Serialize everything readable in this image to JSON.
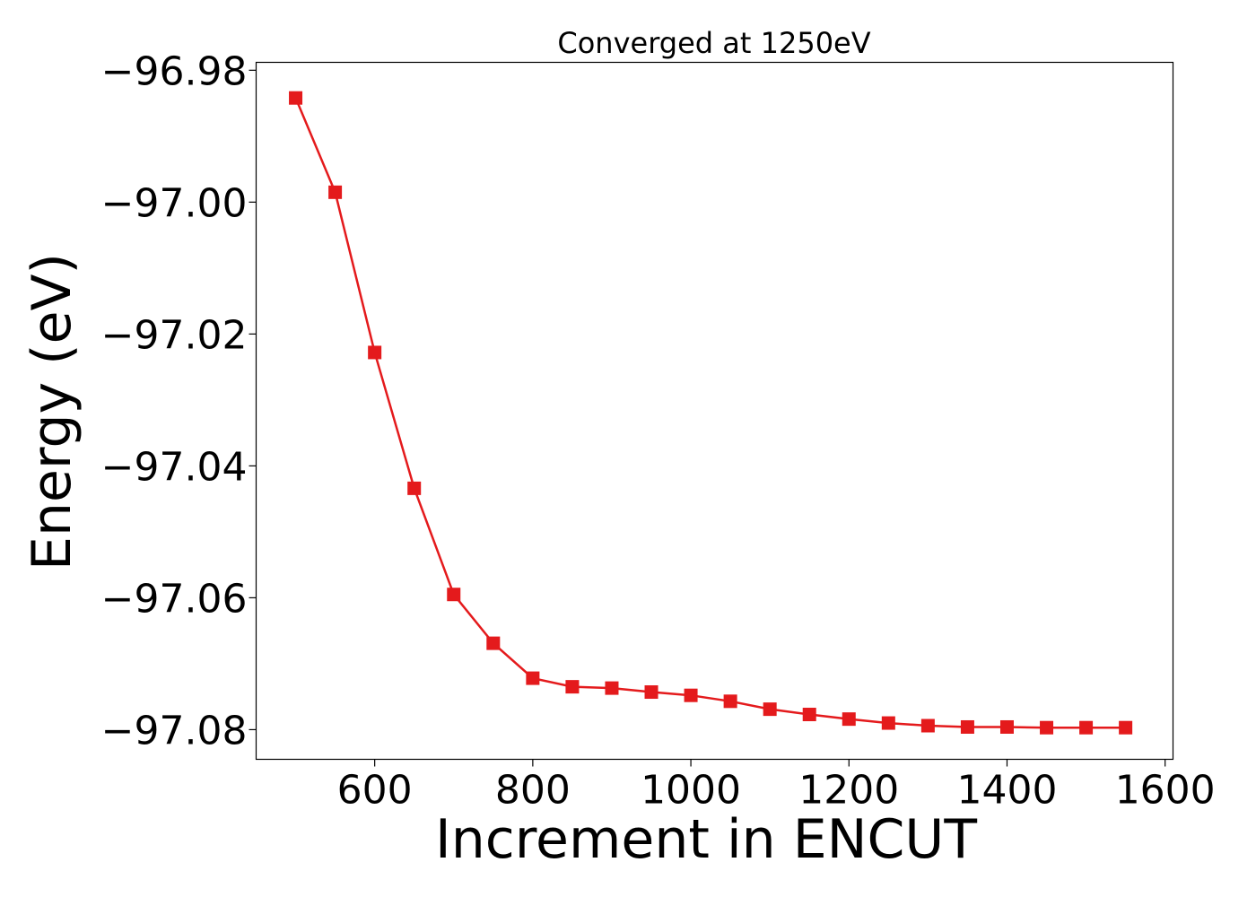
{
  "chart_data": {
    "type": "line",
    "title": "Converged at 1250eV",
    "xlabel": "Increment in ENCUT",
    "ylabel": "Energy (eV)",
    "xlim": [
      450,
      1610
    ],
    "ylim": [
      -97.0845,
      -96.9788
    ],
    "x_ticks": [
      600,
      800,
      1000,
      1200,
      1400,
      1600
    ],
    "x_tick_labels": [
      "600",
      "800",
      "1000",
      "1200",
      "1400",
      "1600"
    ],
    "y_ticks": [
      -96.98,
      -97.0,
      -97.02,
      -97.04,
      -97.06,
      -97.08
    ],
    "y_tick_labels": [
      "−96.98",
      "−97.00",
      "−97.02",
      "−97.04",
      "−97.06",
      "−97.08"
    ],
    "grid": false,
    "series": [
      {
        "color": "#e41a1c",
        "marker": "square",
        "x": [
          500,
          550,
          600,
          650,
          700,
          750,
          800,
          850,
          900,
          950,
          1000,
          1050,
          1100,
          1150,
          1200,
          1250,
          1300,
          1350,
          1400,
          1450,
          1500,
          1550
        ],
        "y": [
          -96.9842,
          -96.9985,
          -97.0228,
          -97.0434,
          -97.0595,
          -97.0669,
          -97.0722,
          -97.0735,
          -97.0737,
          -97.0743,
          -97.0748,
          -97.0757,
          -97.0769,
          -97.0777,
          -97.0784,
          -97.079,
          -97.0794,
          -97.0796,
          -97.0796,
          -97.0797,
          -97.0797,
          -97.0797
        ]
      }
    ]
  }
}
